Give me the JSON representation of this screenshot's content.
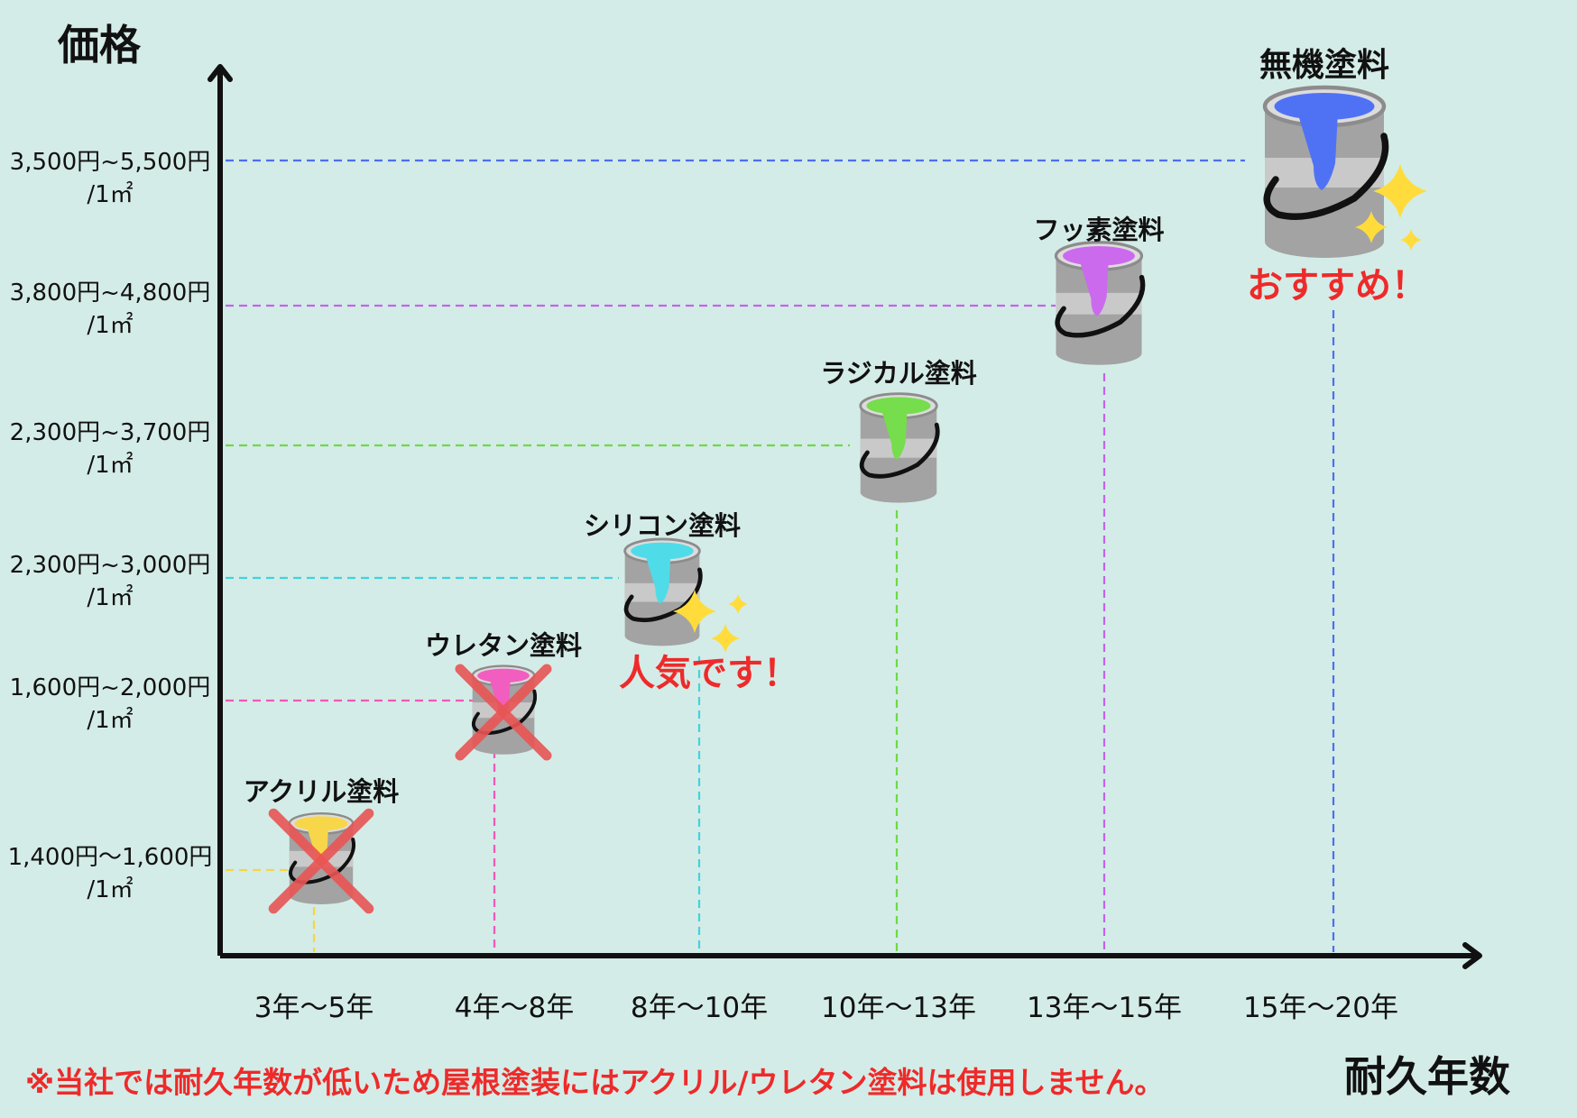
{
  "chart_data": {
    "type": "scatter",
    "ylabel": "価格",
    "xlabel": "耐久年数",
    "categories": [
      "3年〜5年",
      "4年〜8年",
      "8年〜10年",
      "10年〜13年",
      "13年〜15年",
      "15年〜20年"
    ],
    "series": [
      {
        "name": "アクリル塗料",
        "x": "3年〜5年",
        "price": "1,400円〜1,600円",
        "unit": "/1㎡",
        "color": "#f5d547",
        "paint": "#f8d64a",
        "crossed": true
      },
      {
        "name": "ウレタン塗料",
        "x": "4年〜8年",
        "price": "1,600円~2,000円",
        "unit": "/1㎡",
        "color": "#ef58b8",
        "paint": "#f25ec0",
        "crossed": true
      },
      {
        "name": "シリコン塗料",
        "x": "8年〜10年",
        "price": "2,300円~3,000円",
        "unit": "/1㎡",
        "color": "#3fd3e0",
        "paint": "#4fdce8",
        "crossed": false,
        "note": "人気です！"
      },
      {
        "name": "ラジカル塗料",
        "x": "10年〜13年",
        "price": "2,300円~3,700円",
        "unit": "/1㎡",
        "color": "#6ed946",
        "paint": "#76dd4c",
        "crossed": false
      },
      {
        "name": "フッ素塗料",
        "x": "13年〜15年",
        "price": "3,800円~4,800円",
        "unit": "/1㎡",
        "color": "#c264ec",
        "paint": "#cc6aee",
        "crossed": false
      },
      {
        "name": "無機塗料",
        "x": "15年〜20年",
        "price": "3,500円~5,500円",
        "unit": "/1㎡",
        "color": "#4e6ef2",
        "paint": "#4f72f5",
        "crossed": false,
        "note": "おすすめ！"
      }
    ],
    "grid": false,
    "legend": "none"
  },
  "footnote": "※当社では耐久年数が低いため屋根塗装にはアクリル/ウレタン塗料は使用しません。",
  "colors": {
    "background": "#d4ece7",
    "accent": "#ee2a2a",
    "sparkle": "#ffdc3c",
    "cross": "#e95555"
  }
}
